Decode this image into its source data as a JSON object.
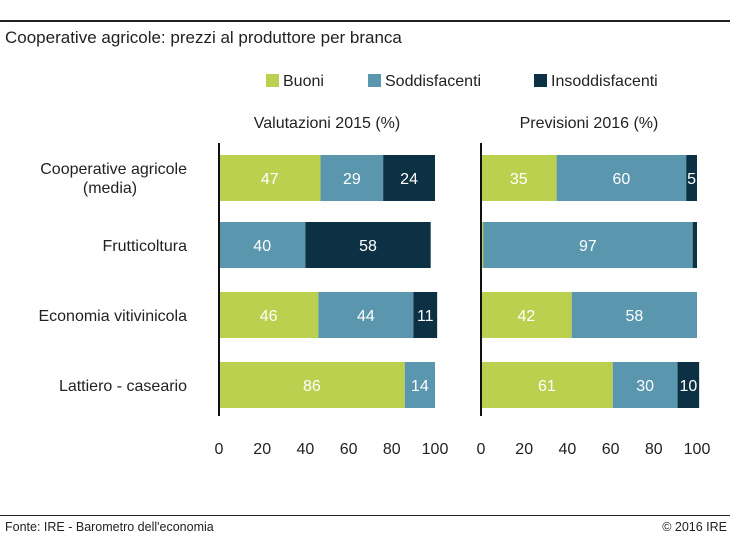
{
  "title": "Cooperative agricole: prezzi al produttore per branca",
  "footer": {
    "source": "Fonte: IRE - Barometro dell'economia",
    "copyright": "© 2016 IRE"
  },
  "colors": {
    "buoni": "#bcd050",
    "soddisfacenti": "#5a96ae",
    "insoddisfacenti": "#0d3144"
  },
  "chart_data": [
    {
      "type": "bar",
      "orientation": "horizontal",
      "stacked": true,
      "title": "Valutazioni 2015 (%)",
      "categories": [
        [
          "Cooperative agricole",
          "(media)"
        ],
        [
          "Frutticoltura"
        ],
        [
          "Economia vitivinicola"
        ],
        [
          "Lattiero - caseario"
        ]
      ],
      "series": [
        {
          "name": "Buoni",
          "values": [
            47,
            0,
            46,
            86
          ]
        },
        {
          "name": "Soddisfacenti",
          "values": [
            29,
            40,
            44,
            14
          ]
        },
        {
          "name": "Insoddisfacenti",
          "values": [
            24,
            58,
            11,
            0
          ]
        }
      ],
      "xlim": [
        0,
        100
      ],
      "xticks": [
        0,
        20,
        40,
        60,
        80,
        100
      ]
    },
    {
      "type": "bar",
      "orientation": "horizontal",
      "stacked": true,
      "title": "Previsioni 2016 (%)",
      "categories": [
        [
          "Cooperative agricole",
          "(media)"
        ],
        [
          "Frutticoltura"
        ],
        [
          "Economia vitivinicola"
        ],
        [
          "Lattiero - caseario"
        ]
      ],
      "series": [
        {
          "name": "Buoni",
          "values": [
            35,
            1,
            42,
            61
          ]
        },
        {
          "name": "Soddisfacenti",
          "values": [
            60,
            97,
            58,
            30
          ]
        },
        {
          "name": "Insoddisfacenti",
          "values": [
            5,
            2,
            0,
            10
          ]
        }
      ],
      "xlim": [
        0,
        100
      ],
      "xticks": [
        0,
        20,
        40,
        60,
        80,
        100
      ]
    }
  ],
  "legend": [
    "Buoni",
    "Soddisfacenti",
    "Insoddisfacenti"
  ]
}
